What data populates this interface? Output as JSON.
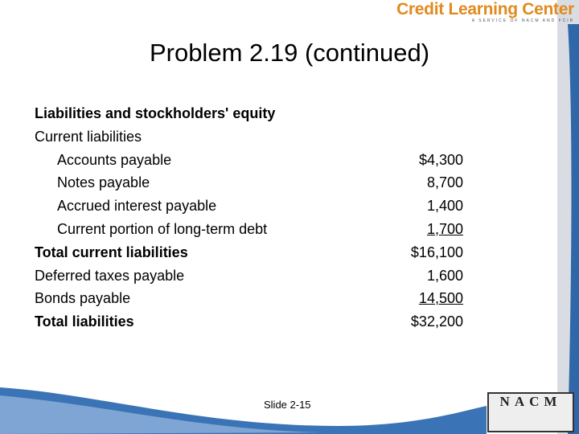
{
  "header": {
    "brand": "Credit Learning Center",
    "tagline": "A SERVICE OF NACM AND FCIB"
  },
  "title": "Problem 2.19 (continued)",
  "rows": [
    {
      "label": "Liabilities and stockholders' equity",
      "amount": null,
      "bold": true,
      "indent": false,
      "underline": false
    },
    {
      "label": "Current liabilities",
      "amount": null,
      "bold": false,
      "indent": false,
      "underline": false
    },
    {
      "label": "Accounts payable",
      "amount": "$4,300",
      "bold": false,
      "indent": true,
      "underline": false
    },
    {
      "label": "Notes payable",
      "amount": "8,700",
      "bold": false,
      "indent": true,
      "underline": false
    },
    {
      "label": "Accrued interest payable",
      "amount": "1,400",
      "bold": false,
      "indent": true,
      "underline": false
    },
    {
      "label": "Current portion of long-term debt",
      "amount": "1,700",
      "bold": false,
      "indent": true,
      "underline": true
    },
    {
      "label": "Total current liabilities",
      "amount": "$16,100",
      "bold": true,
      "indent": false,
      "underline": false
    },
    {
      "label": "Deferred taxes payable",
      "amount": "1,600",
      "bold": false,
      "indent": false,
      "underline": false
    },
    {
      "label": "Bonds payable",
      "amount": "14,500",
      "bold": false,
      "indent": false,
      "underline": true
    },
    {
      "label": "Total liabilities",
      "amount": "$32,200",
      "bold": true,
      "indent": false,
      "underline": false
    }
  ],
  "footer": {
    "slide": "Slide 2-15",
    "logo": "NACM"
  }
}
